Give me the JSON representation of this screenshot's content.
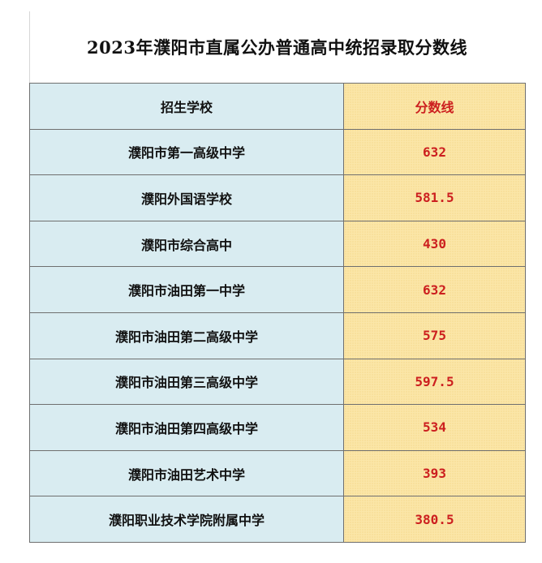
{
  "title": "2023年濮阳市直属公办普通高中统招录取分数线",
  "headers": {
    "school": "招生学校",
    "score": "分数线"
  },
  "rows": [
    {
      "school": "濮阳市第一高级中学",
      "score": "632"
    },
    {
      "school": "濮阳外国语学校",
      "score": "581.5"
    },
    {
      "school": "濮阳市综合高中",
      "score": "430"
    },
    {
      "school": "濮阳市油田第一中学",
      "score": "632"
    },
    {
      "school": "濮阳市油田第二高级中学",
      "score": "575"
    },
    {
      "school": "濮阳市油田第三高级中学",
      "score": "597.5"
    },
    {
      "school": "濮阳市油田第四高级中学",
      "score": "534"
    },
    {
      "school": "濮阳市油田艺术中学",
      "score": "393"
    },
    {
      "school": "濮阳职业技术学院附属中学",
      "score": "380.5"
    }
  ],
  "colors": {
    "school_column_bg": "#d9ecf1",
    "score_column_bg": "#fbe6a8",
    "score_text": "#cc1f1f"
  }
}
